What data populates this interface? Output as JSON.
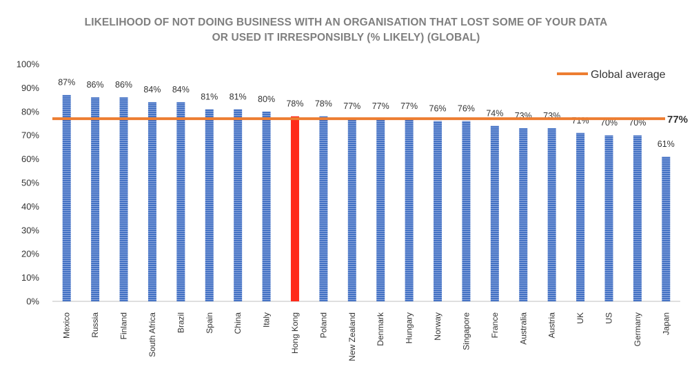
{
  "chart_data": {
    "type": "bar",
    "title": "LIKELIHOOD OF NOT DOING BUSINESS WITH AN ORGANISATION THAT LOST SOME OF YOUR DATA OR USED IT IRRESPONSIBLY (% LIKELY) (GLOBAL)",
    "title_lines": [
      "LIKELIHOOD OF NOT DOING BUSINESS WITH AN ORGANISATION THAT LOST SOME OF YOUR DATA",
      "OR USED IT IRRESPONSIBLY (% LIKELY) (GLOBAL)"
    ],
    "categories": [
      "Mexico",
      "Russia",
      "Finland",
      "South Africa",
      "Brazil",
      "Spain",
      "China",
      "Italy",
      "Hong Kong",
      "Poland",
      "New Zealand",
      "Denmark",
      "Hungary",
      "Norway",
      "Singapore",
      "France",
      "Australia",
      "Austria",
      "UK",
      "US",
      "Germany",
      "Japan"
    ],
    "values": [
      87,
      86,
      86,
      84,
      84,
      81,
      81,
      80,
      78,
      78,
      77,
      77,
      77,
      76,
      76,
      74,
      73,
      73,
      71,
      70,
      70,
      61
    ],
    "value_labels": [
      "87%",
      "86%",
      "86%",
      "84%",
      "84%",
      "81%",
      "81%",
      "80%",
      "78%",
      "78%",
      "77%",
      "77%",
      "77%",
      "76%",
      "76%",
      "74%",
      "73%",
      "73%",
      "71%",
      "70%",
      "70%",
      "61%"
    ],
    "ylim": [
      0,
      100
    ],
    "yticks": [
      0,
      10,
      20,
      30,
      40,
      50,
      60,
      70,
      80,
      90,
      100
    ],
    "ytick_labels": [
      "0%",
      "10%",
      "20%",
      "30%",
      "40%",
      "50%",
      "60%",
      "70%",
      "80%",
      "90%",
      "100%"
    ],
    "xlabel": "",
    "ylabel": "",
    "grid": false,
    "highlight_category": "Hong Kong",
    "reference_line": {
      "name": "Global average",
      "value": 77,
      "label": "77%",
      "color": "#ed7d31"
    },
    "legend": {
      "position": "top-right",
      "entries": [
        "Global average"
      ]
    },
    "colors": {
      "bar": "#4472c4",
      "highlight": "#ff2a1a",
      "average": "#ed7d31"
    }
  }
}
